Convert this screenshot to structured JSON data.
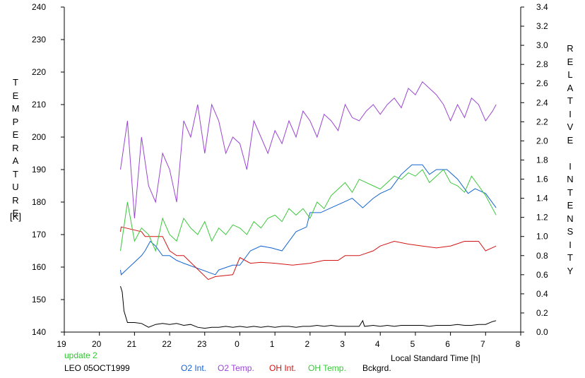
{
  "chart_data": {
    "type": "line",
    "left_axis": {
      "label": "TEMPERATURE",
      "unit": "[K]",
      "ylim": [
        140,
        240
      ],
      "ticks": [
        140,
        150,
        160,
        170,
        180,
        190,
        200,
        210,
        220,
        230,
        240
      ]
    },
    "right_axis": {
      "label": "RELATIVE INTENSITY",
      "ylim": [
        0.0,
        3.4
      ],
      "ticks": [
        "0.0",
        "0.2",
        "0.4",
        "0.6",
        "0.8",
        "1.0",
        "1.2",
        "1.4",
        "1.6",
        "1.8",
        "2.0",
        "2.2",
        "2.4",
        "2.6",
        "2.8",
        "3.0",
        "3.2",
        "3.4"
      ]
    },
    "x_axis": {
      "label": "Local Standard Time [h]",
      "tick_labels": [
        "19",
        "20",
        "21",
        "22",
        "23",
        "0",
        "1",
        "2",
        "3",
        "4",
        "5",
        "6",
        "7",
        "8"
      ],
      "xlim": [
        19,
        32
      ]
    },
    "grid": false,
    "status": "update 2",
    "station": "LEO 05OCT1999",
    "colors": {
      "o2_int": "#1464d2",
      "o2_temp": "#9b46d2",
      "oh_int": "#d21414",
      "oh_temp": "#3cc83c",
      "bckgrd": "#000000",
      "status": "#2ec82e"
    },
    "series": [
      {
        "name": "O2 Int.",
        "axis": "right",
        "points": [
          [
            20.6,
            0.65
          ],
          [
            20.62,
            0.6
          ],
          [
            21.2,
            0.8
          ],
          [
            21.3,
            0.85
          ],
          [
            21.45,
            0.95
          ],
          [
            21.6,
            0.9
          ],
          [
            21.8,
            0.8
          ],
          [
            22.0,
            0.8
          ],
          [
            22.2,
            0.75
          ],
          [
            22.4,
            0.72
          ],
          [
            23.3,
            0.6
          ],
          [
            23.4,
            0.65
          ],
          [
            23.8,
            0.7
          ],
          [
            24.0,
            0.7
          ],
          [
            24.3,
            0.85
          ],
          [
            24.6,
            0.9
          ],
          [
            24.9,
            0.88
          ],
          [
            25.2,
            0.85
          ],
          [
            25.6,
            1.05
          ],
          [
            25.9,
            1.1
          ],
          [
            26.0,
            1.25
          ],
          [
            26.3,
            1.25
          ],
          [
            26.6,
            1.3
          ],
          [
            26.9,
            1.35
          ],
          [
            27.2,
            1.4
          ],
          [
            27.5,
            1.3
          ],
          [
            27.8,
            1.4
          ],
          [
            28.0,
            1.45
          ],
          [
            28.3,
            1.5
          ],
          [
            28.6,
            1.65
          ],
          [
            28.9,
            1.75
          ],
          [
            29.2,
            1.75
          ],
          [
            29.4,
            1.65
          ],
          [
            29.6,
            1.7
          ],
          [
            29.9,
            1.7
          ],
          [
            30.2,
            1.6
          ],
          [
            30.5,
            1.45
          ],
          [
            30.7,
            1.5
          ],
          [
            31.0,
            1.45
          ],
          [
            31.3,
            1.3
          ]
        ]
      },
      {
        "name": "O2 Temp.",
        "axis": "left",
        "points": [
          [
            20.6,
            190
          ],
          [
            20.8,
            205
          ],
          [
            21.0,
            175
          ],
          [
            21.2,
            200
          ],
          [
            21.4,
            185
          ],
          [
            21.6,
            180
          ],
          [
            21.8,
            195
          ],
          [
            22.0,
            190
          ],
          [
            22.2,
            180
          ],
          [
            22.4,
            205
          ],
          [
            22.6,
            200
          ],
          [
            22.8,
            210
          ],
          [
            23.0,
            195
          ],
          [
            23.2,
            210
          ],
          [
            23.4,
            205
          ],
          [
            23.6,
            195
          ],
          [
            23.8,
            200
          ],
          [
            24.0,
            198
          ],
          [
            24.2,
            190
          ],
          [
            24.4,
            205
          ],
          [
            24.6,
            200
          ],
          [
            24.8,
            195
          ],
          [
            25.0,
            202
          ],
          [
            25.2,
            198
          ],
          [
            25.4,
            205
          ],
          [
            25.6,
            200
          ],
          [
            25.8,
            208
          ],
          [
            26.0,
            205
          ],
          [
            26.2,
            200
          ],
          [
            26.4,
            207
          ],
          [
            26.6,
            205
          ],
          [
            26.8,
            202
          ],
          [
            27.0,
            210
          ],
          [
            27.2,
            206
          ],
          [
            27.4,
            205
          ],
          [
            27.6,
            208
          ],
          [
            27.8,
            210
          ],
          [
            28.0,
            207
          ],
          [
            28.2,
            210
          ],
          [
            28.4,
            212
          ],
          [
            28.6,
            209
          ],
          [
            28.8,
            215
          ],
          [
            29.0,
            213
          ],
          [
            29.2,
            217
          ],
          [
            29.4,
            215
          ],
          [
            29.6,
            213
          ],
          [
            29.8,
            210
          ],
          [
            30.0,
            205
          ],
          [
            30.2,
            210
          ],
          [
            30.4,
            206
          ],
          [
            30.6,
            212
          ],
          [
            30.8,
            210
          ],
          [
            31.0,
            205
          ],
          [
            31.2,
            208
          ],
          [
            31.3,
            210
          ]
        ]
      },
      {
        "name": "OH Int.",
        "axis": "right",
        "points": [
          [
            20.6,
            1.05
          ],
          [
            20.62,
            1.1
          ],
          [
            21.2,
            1.05
          ],
          [
            21.3,
            1.0
          ],
          [
            21.8,
            1.0
          ],
          [
            22.0,
            0.85
          ],
          [
            22.2,
            0.8
          ],
          [
            22.4,
            0.8
          ],
          [
            23.1,
            0.55
          ],
          [
            23.3,
            0.58
          ],
          [
            23.8,
            0.6
          ],
          [
            24.0,
            0.78
          ],
          [
            24.3,
            0.72
          ],
          [
            24.6,
            0.73
          ],
          [
            25.0,
            0.72
          ],
          [
            25.5,
            0.7
          ],
          [
            26.0,
            0.72
          ],
          [
            26.4,
            0.75
          ],
          [
            26.8,
            0.75
          ],
          [
            27.0,
            0.8
          ],
          [
            27.4,
            0.8
          ],
          [
            27.8,
            0.85
          ],
          [
            28.0,
            0.9
          ],
          [
            28.4,
            0.95
          ],
          [
            28.8,
            0.92
          ],
          [
            29.2,
            0.9
          ],
          [
            29.6,
            0.88
          ],
          [
            30.0,
            0.9
          ],
          [
            30.4,
            0.95
          ],
          [
            30.8,
            0.95
          ],
          [
            31.0,
            0.85
          ],
          [
            31.3,
            0.9
          ]
        ]
      },
      {
        "name": "OH Temp.",
        "axis": "left",
        "points": [
          [
            20.6,
            165
          ],
          [
            20.8,
            180
          ],
          [
            21.0,
            168
          ],
          [
            21.2,
            172
          ],
          [
            21.4,
            170
          ],
          [
            21.6,
            165
          ],
          [
            21.8,
            175
          ],
          [
            22.0,
            170
          ],
          [
            22.2,
            168
          ],
          [
            22.4,
            175
          ],
          [
            22.6,
            172
          ],
          [
            22.8,
            170
          ],
          [
            23.0,
            174
          ],
          [
            23.2,
            168
          ],
          [
            23.4,
            172
          ],
          [
            23.6,
            170
          ],
          [
            23.8,
            173
          ],
          [
            24.0,
            172
          ],
          [
            24.2,
            170
          ],
          [
            24.4,
            174
          ],
          [
            24.6,
            172
          ],
          [
            24.8,
            175
          ],
          [
            25.0,
            176
          ],
          [
            25.2,
            174
          ],
          [
            25.4,
            178
          ],
          [
            25.6,
            176
          ],
          [
            25.8,
            178
          ],
          [
            26.0,
            175
          ],
          [
            26.2,
            180
          ],
          [
            26.4,
            178
          ],
          [
            26.6,
            182
          ],
          [
            26.8,
            184
          ],
          [
            27.0,
            186
          ],
          [
            27.2,
            183
          ],
          [
            27.4,
            187
          ],
          [
            27.6,
            186
          ],
          [
            27.8,
            185
          ],
          [
            28.0,
            184
          ],
          [
            28.2,
            186
          ],
          [
            28.4,
            188
          ],
          [
            28.6,
            187
          ],
          [
            28.8,
            189
          ],
          [
            29.0,
            188
          ],
          [
            29.2,
            190
          ],
          [
            29.4,
            186
          ],
          [
            29.6,
            188
          ],
          [
            29.8,
            190
          ],
          [
            30.0,
            186
          ],
          [
            30.2,
            185
          ],
          [
            30.4,
            183
          ],
          [
            30.6,
            188
          ],
          [
            30.8,
            185
          ],
          [
            31.0,
            182
          ],
          [
            31.2,
            178
          ],
          [
            31.3,
            176
          ]
        ]
      },
      {
        "name": "Bckgrd.",
        "axis": "right",
        "points": [
          [
            20.6,
            0.48
          ],
          [
            20.65,
            0.42
          ],
          [
            20.7,
            0.22
          ],
          [
            20.8,
            0.1
          ],
          [
            21.0,
            0.1
          ],
          [
            21.2,
            0.09
          ],
          [
            21.4,
            0.05
          ],
          [
            21.6,
            0.08
          ],
          [
            21.8,
            0.09
          ],
          [
            22.0,
            0.08
          ],
          [
            22.2,
            0.09
          ],
          [
            22.4,
            0.07
          ],
          [
            22.6,
            0.08
          ],
          [
            22.8,
            0.05
          ],
          [
            23.0,
            0.04
          ],
          [
            23.2,
            0.05
          ],
          [
            23.4,
            0.05
          ],
          [
            23.6,
            0.06
          ],
          [
            23.8,
            0.05
          ],
          [
            24.0,
            0.06
          ],
          [
            24.2,
            0.05
          ],
          [
            24.4,
            0.06
          ],
          [
            24.6,
            0.05
          ],
          [
            24.8,
            0.06
          ],
          [
            25.0,
            0.05
          ],
          [
            25.2,
            0.06
          ],
          [
            25.4,
            0.06
          ],
          [
            25.6,
            0.05
          ],
          [
            25.8,
            0.06
          ],
          [
            26.0,
            0.06
          ],
          [
            26.2,
            0.07
          ],
          [
            26.4,
            0.06
          ],
          [
            26.6,
            0.07
          ],
          [
            26.8,
            0.06
          ],
          [
            27.0,
            0.06
          ],
          [
            27.2,
            0.06
          ],
          [
            27.4,
            0.06
          ],
          [
            27.5,
            0.12
          ],
          [
            27.55,
            0.06
          ],
          [
            27.8,
            0.07
          ],
          [
            28.0,
            0.06
          ],
          [
            28.2,
            0.07
          ],
          [
            28.4,
            0.06
          ],
          [
            28.6,
            0.07
          ],
          [
            28.8,
            0.07
          ],
          [
            29.0,
            0.07
          ],
          [
            29.2,
            0.07
          ],
          [
            29.4,
            0.06
          ],
          [
            29.6,
            0.07
          ],
          [
            29.8,
            0.07
          ],
          [
            30.0,
            0.07
          ],
          [
            30.2,
            0.08
          ],
          [
            30.4,
            0.07
          ],
          [
            30.6,
            0.07
          ],
          [
            30.8,
            0.08
          ],
          [
            31.0,
            0.08
          ],
          [
            31.2,
            0.11
          ],
          [
            31.3,
            0.12
          ]
        ]
      }
    ]
  }
}
